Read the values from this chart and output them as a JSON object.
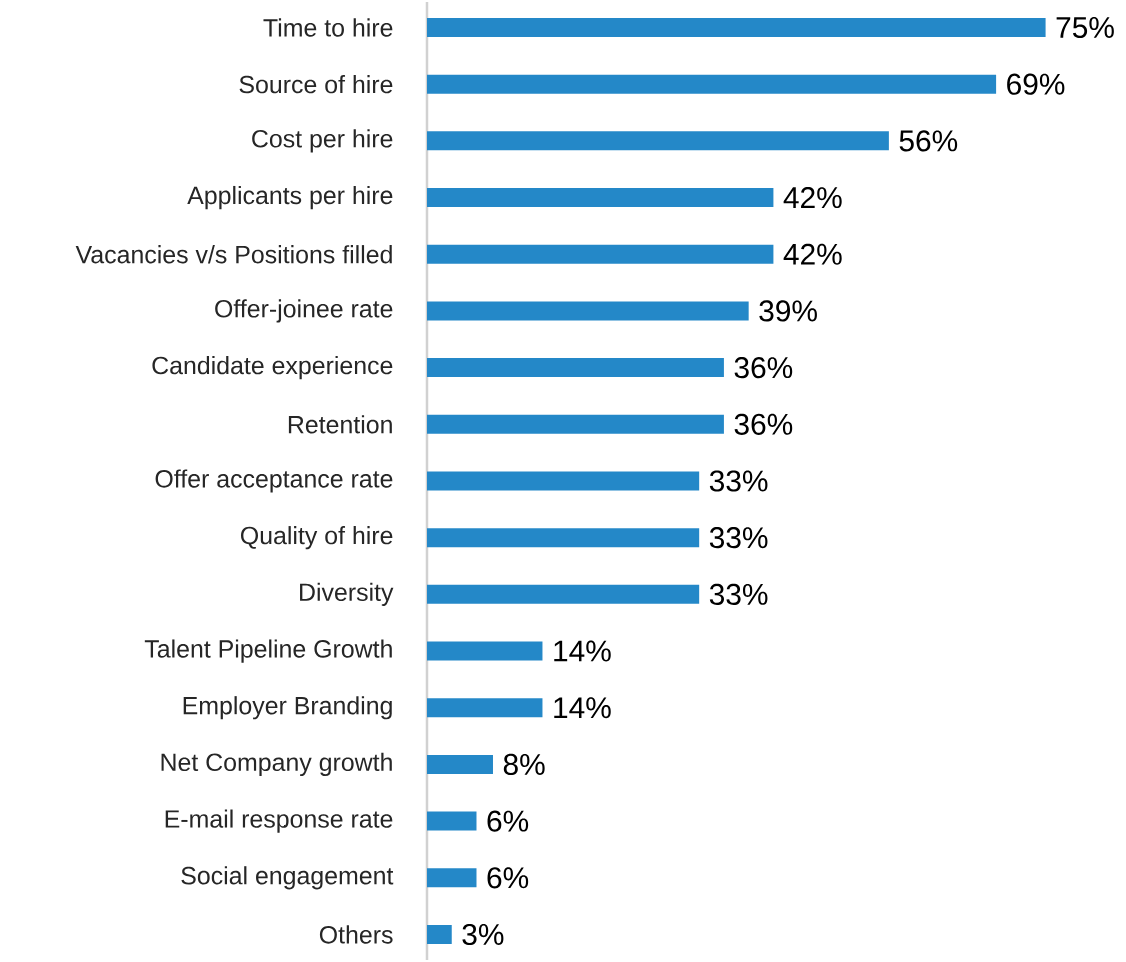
{
  "chart_data": {
    "type": "bar",
    "orientation": "horizontal",
    "categories": [
      "Time to hire",
      "Source of hire",
      "Cost per hire",
      "Applicants per hire",
      "Vacancies v/s Positions filled",
      "Offer-joinee rate",
      "Candidate experience",
      "Retention",
      "Offer acceptance rate",
      "Quality of hire",
      "Diversity",
      "Talent Pipeline Growth",
      "Employer Branding",
      "Net Company growth",
      "E-mail response rate",
      "Social engagement",
      "Others"
    ],
    "values": [
      75,
      69,
      56,
      42,
      42,
      39,
      36,
      36,
      33,
      33,
      33,
      14,
      14,
      8,
      6,
      6,
      3
    ],
    "value_labels": [
      "75%",
      "69%",
      "56%",
      "42%",
      "42%",
      "39%",
      "36%",
      "36%",
      "33%",
      "33%",
      "33%",
      "14%",
      "14%",
      "8%",
      "6%",
      "6%",
      "3%"
    ],
    "color": "#2488c8"
  }
}
